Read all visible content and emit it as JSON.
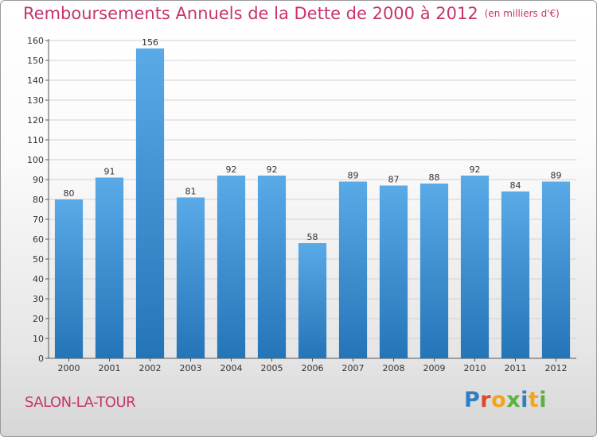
{
  "title": "Remboursements Annuels de la Dette de 2000 à 2012",
  "unit_note": "(en milliers d'€)",
  "location": "SALON-LA-TOUR",
  "logo": {
    "letters": [
      "P",
      "r",
      "o",
      "x",
      "i",
      "t",
      "i"
    ],
    "text": "Proxiti"
  },
  "colors": {
    "bar_top": "#5aaae8",
    "bar_bottom": "#2474b8",
    "title": "#c8336e",
    "grid": "#d2d2d2"
  },
  "chart_data": {
    "type": "bar",
    "title": "Remboursements Annuels de la Dette de 2000 à 2012",
    "xlabel": "",
    "ylabel": "",
    "categories": [
      "2000",
      "2001",
      "2002",
      "2003",
      "2004",
      "2005",
      "2006",
      "2007",
      "2008",
      "2009",
      "2010",
      "2011",
      "2012"
    ],
    "values": [
      80,
      91,
      156,
      81,
      92,
      92,
      58,
      89,
      87,
      88,
      92,
      84,
      89
    ],
    "ylim": [
      0,
      160
    ],
    "yticks": [
      0,
      10,
      20,
      30,
      40,
      50,
      60,
      70,
      80,
      90,
      100,
      110,
      120,
      130,
      140,
      150,
      160
    ],
    "grid": true,
    "legend": "none"
  }
}
